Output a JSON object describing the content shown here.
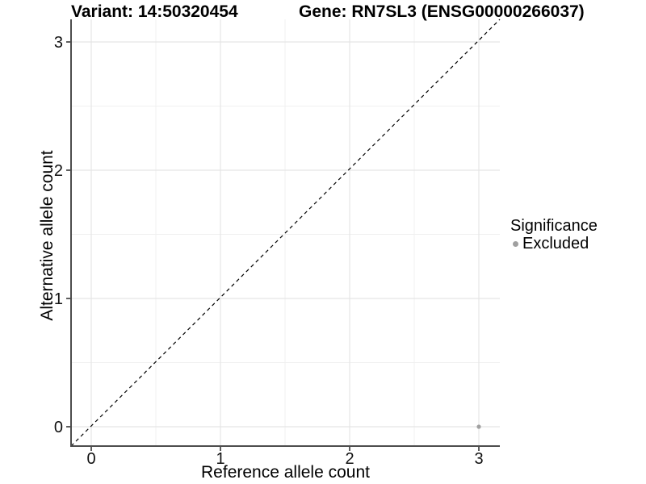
{
  "figure": {
    "title_variant": "Variant: 14:50320454",
    "title_gene": "Gene: RN7SL3 (ENSG00000266037)"
  },
  "axes": {
    "x_label": "Reference allele count",
    "y_label": "Alternative allele count"
  },
  "legend": {
    "title": "Significance",
    "items": [
      {
        "label": "Excluded",
        "color": "#a0a0a0"
      }
    ]
  },
  "colors": {
    "grid_major": "#e5e5e5",
    "grid_minor": "#f0f0f0",
    "axis_line": "#4d4d4d",
    "text": "#111111",
    "point": "#a0a0a0",
    "identity_line": "#000000"
  },
  "chart_data": {
    "type": "scatter",
    "title": "Variant: 14:50320454 | Gene: RN7SL3 (ENSG00000266037)",
    "xlabel": "Reference allele count",
    "ylabel": "Alternative allele count",
    "xlim": [
      -0.16,
      3.17
    ],
    "ylim": [
      -0.16,
      3.17
    ],
    "x_ticks": [
      0,
      1,
      2,
      3
    ],
    "y_ticks": [
      0,
      1,
      2,
      3
    ],
    "minor_x": [
      0.5,
      1.5,
      2.5
    ],
    "minor_y": [
      0.5,
      1.5,
      2.5
    ],
    "grid": true,
    "legend_position": "right",
    "legend_title": "Significance",
    "series": [
      {
        "name": "Excluded",
        "color": "#a0a0a0",
        "points": [
          {
            "x": 3,
            "y": 0
          }
        ]
      }
    ],
    "reference_line": {
      "kind": "identity",
      "style": "dashed",
      "color": "#000000"
    }
  }
}
